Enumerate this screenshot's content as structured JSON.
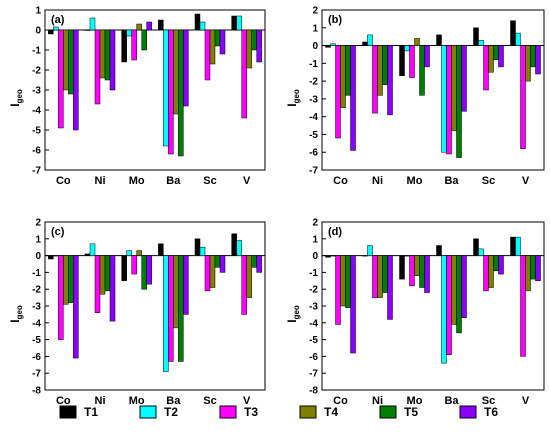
{
  "chart_data": [
    {
      "type": "bar",
      "title": "(a)",
      "ylabel": "I",
      "ylabel_sub": "geo",
      "ylim": [
        -7,
        1
      ],
      "yticks": [
        1,
        0,
        -1,
        -2,
        -3,
        -4,
        -5,
        -6,
        -7
      ],
      "categories": [
        "Co",
        "Ni",
        "Mo",
        "Ba",
        "Sc",
        "V"
      ],
      "series": [
        {
          "name": "T1",
          "values": [
            -0.2,
            0.0,
            -1.6,
            0.5,
            0.8,
            0.7
          ]
        },
        {
          "name": "T2",
          "values": [
            0.15,
            0.6,
            -0.3,
            -5.8,
            0.4,
            0.7
          ]
        },
        {
          "name": "T3",
          "values": [
            -4.9,
            -3.7,
            -1.5,
            -6.2,
            -2.5,
            -4.4
          ]
        },
        {
          "name": "T4",
          "values": [
            -3.0,
            -2.4,
            0.3,
            -4.2,
            -1.7,
            -1.9
          ]
        },
        {
          "name": "T5",
          "values": [
            -3.2,
            -2.5,
            -1.0,
            -6.3,
            -0.8,
            -1.0
          ]
        },
        {
          "name": "T6",
          "values": [
            -5.0,
            -3.0,
            0.4,
            -3.8,
            -1.2,
            -1.6
          ]
        }
      ]
    },
    {
      "type": "bar",
      "title": "(b)",
      "ylabel": "I",
      "ylabel_sub": "geo",
      "ylim": [
        -7,
        2
      ],
      "yticks": [
        2,
        1,
        0,
        -1,
        -2,
        -3,
        -4,
        -5,
        -6,
        -7
      ],
      "categories": [
        "Co",
        "Ni",
        "Mo",
        "Ba",
        "Sc",
        "V"
      ],
      "series": [
        {
          "name": "T1",
          "values": [
            -0.1,
            0.2,
            -1.7,
            0.6,
            1.0,
            1.4
          ]
        },
        {
          "name": "T2",
          "values": [
            0.1,
            0.6,
            -0.3,
            -6.0,
            0.3,
            0.7
          ]
        },
        {
          "name": "T3",
          "values": [
            -5.2,
            -3.8,
            -1.8,
            -6.1,
            -2.5,
            -5.8
          ]
        },
        {
          "name": "T4",
          "values": [
            -3.5,
            -2.8,
            0.4,
            -4.8,
            -1.5,
            -2.0
          ]
        },
        {
          "name": "T5",
          "values": [
            -2.8,
            -2.2,
            -2.8,
            -6.3,
            -0.8,
            -1.2
          ]
        },
        {
          "name": "T6",
          "values": [
            -5.9,
            -3.9,
            -1.2,
            -3.7,
            -1.2,
            -1.6
          ]
        }
      ]
    },
    {
      "type": "bar",
      "title": "(c)",
      "ylabel": "I",
      "ylabel_sub": "geo",
      "ylim": [
        -8,
        2
      ],
      "yticks": [
        2,
        1,
        0,
        -1,
        -2,
        -3,
        -4,
        -5,
        -6,
        -7,
        -8
      ],
      "categories": [
        "Co",
        "Ni",
        "Mo",
        "Ba",
        "Sc",
        "V"
      ],
      "series": [
        {
          "name": "T1",
          "values": [
            -0.2,
            0.1,
            -1.5,
            0.7,
            1.0,
            1.3
          ]
        },
        {
          "name": "T2",
          "values": [
            0.0,
            0.7,
            0.3,
            -6.9,
            0.5,
            0.9
          ]
        },
        {
          "name": "T3",
          "values": [
            -5.0,
            -3.4,
            -1.1,
            -6.3,
            -2.1,
            -3.5
          ]
        },
        {
          "name": "T4",
          "values": [
            -2.9,
            -2.3,
            0.3,
            -4.3,
            -1.9,
            -2.5
          ]
        },
        {
          "name": "T5",
          "values": [
            -2.8,
            -2.1,
            -2.0,
            -6.3,
            -0.7,
            -0.7
          ]
        },
        {
          "name": "T6",
          "values": [
            -6.1,
            -3.9,
            -1.7,
            -3.5,
            -1.0,
            -1.0
          ]
        }
      ]
    },
    {
      "type": "bar",
      "title": "(d)",
      "ylabel": "I",
      "ylabel_sub": "geo",
      "ylim": [
        -8,
        2
      ],
      "yticks": [
        2,
        1,
        0,
        -1,
        -2,
        -3,
        -4,
        -5,
        -6,
        -7,
        -8
      ],
      "categories": [
        "Co",
        "Ni",
        "Mo",
        "Ba",
        "Sc",
        "V"
      ],
      "series": [
        {
          "name": "T1",
          "values": [
            -0.1,
            0.0,
            -1.4,
            0.6,
            1.0,
            1.1
          ]
        },
        {
          "name": "T2",
          "values": [
            0.0,
            0.6,
            0.0,
            -6.4,
            0.4,
            1.1
          ]
        },
        {
          "name": "T3",
          "values": [
            -4.1,
            -2.5,
            -1.8,
            -5.9,
            -2.1,
            -6.0
          ]
        },
        {
          "name": "T4",
          "values": [
            -3.0,
            -2.5,
            -1.2,
            -4.1,
            -1.9,
            -2.1
          ]
        },
        {
          "name": "T5",
          "values": [
            -3.1,
            -2.2,
            -1.9,
            -4.6,
            -0.9,
            -1.4
          ]
        },
        {
          "name": "T6",
          "values": [
            -5.8,
            -3.8,
            -2.2,
            -3.7,
            -1.1,
            -1.5
          ]
        }
      ]
    }
  ],
  "legend": {
    "items": [
      {
        "name": "T1",
        "color": "#000000"
      },
      {
        "name": "T2",
        "color": "#00ffff"
      },
      {
        "name": "T3",
        "color": "#ff00ff"
      },
      {
        "name": "T4",
        "color": "#808000"
      },
      {
        "name": "T5",
        "color": "#008000"
      },
      {
        "name": "T6",
        "color": "#8b00ff"
      }
    ]
  }
}
